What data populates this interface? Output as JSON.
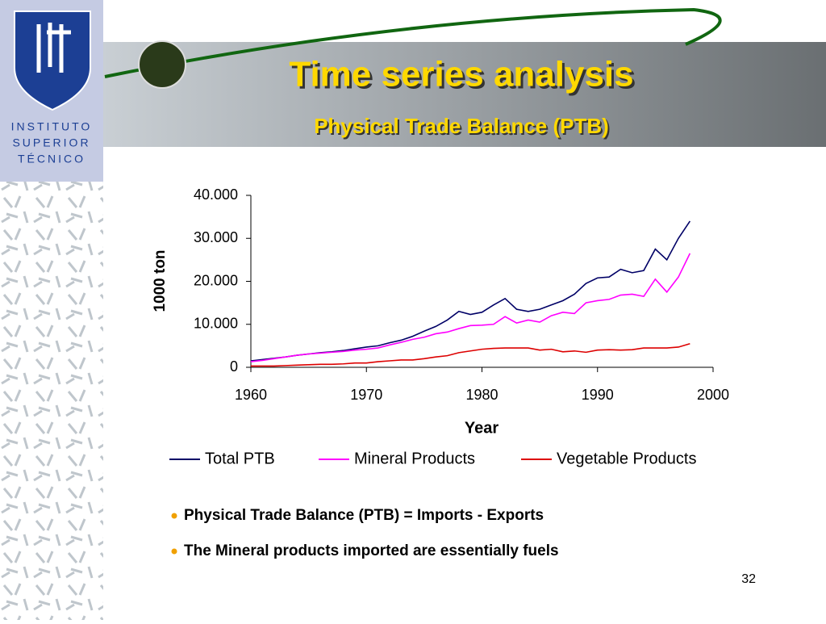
{
  "logo": {
    "lines": [
      "INSTITUTO",
      "SUPERIOR",
      "TÉCNICO"
    ]
  },
  "header": {
    "title": "Time series analysis",
    "subtitle": "Physical Trade Balance (PTB)"
  },
  "chart_data": {
    "type": "line",
    "x_label": "Year",
    "y_label": "1000 ton",
    "x": [
      1960,
      1961,
      1962,
      1963,
      1964,
      1965,
      1966,
      1967,
      1968,
      1969,
      1970,
      1971,
      1972,
      1973,
      1974,
      1975,
      1976,
      1977,
      1978,
      1979,
      1980,
      1981,
      1982,
      1983,
      1984,
      1985,
      1986,
      1987,
      1988,
      1989,
      1990,
      1991,
      1992,
      1993,
      1994,
      1995,
      1996,
      1997,
      1998
    ],
    "series": [
      {
        "name": "Total PTB",
        "color": "#000066",
        "values": [
          1500,
          1800,
          2100,
          2400,
          2800,
          3100,
          3400,
          3600,
          3900,
          4300,
          4700,
          5000,
          5700,
          6300,
          7200,
          8400,
          9500,
          11000,
          13000,
          12300,
          12800,
          14500,
          16000,
          13500,
          13000,
          13500,
          14500,
          15500,
          17000,
          19500,
          20800,
          21000,
          22800,
          22000,
          22500,
          27500,
          25000,
          30000,
          34000
        ]
      },
      {
        "name": "Mineral Products",
        "color": "#ff00ff",
        "values": [
          1300,
          1600,
          2000,
          2400,
          2800,
          3100,
          3300,
          3500,
          3700,
          4000,
          4200,
          4500,
          5200,
          5800,
          6500,
          7000,
          7800,
          8200,
          9000,
          9700,
          9800,
          10000,
          11800,
          10300,
          11000,
          10500,
          12000,
          12800,
          12500,
          15000,
          15500,
          15800,
          16800,
          17000,
          16500,
          20500,
          17500,
          21000,
          26500
        ]
      },
      {
        "name": "Vegetable Products",
        "color": "#dd0000",
        "values": [
          300,
          300,
          300,
          400,
          500,
          600,
          700,
          700,
          800,
          1000,
          1000,
          1300,
          1500,
          1700,
          1700,
          2000,
          2400,
          2700,
          3400,
          3800,
          4200,
          4400,
          4500,
          4500,
          4500,
          4000,
          4200,
          3600,
          3800,
          3500,
          4000,
          4100,
          4000,
          4100,
          4500,
          4500,
          4500,
          4700,
          5500
        ]
      }
    ],
    "xlim": [
      1960,
      2000
    ],
    "xticks": [
      1960,
      1970,
      1980,
      1990,
      2000
    ],
    "ylim": [
      0,
      40000
    ],
    "yticks": [
      0,
      {
        "value": 10000,
        "label": "10.000"
      },
      {
        "value": 20000,
        "label": "20.000"
      },
      {
        "value": 30000,
        "label": "30.000"
      },
      {
        "value": 40000,
        "label": "40.000"
      }
    ],
    "legend": "bottom"
  },
  "bullets": [
    "Physical Trade Balance (PTB) = Imports - Exports",
    "The Mineral products imported are essentially fuels"
  ],
  "page_number": "32"
}
